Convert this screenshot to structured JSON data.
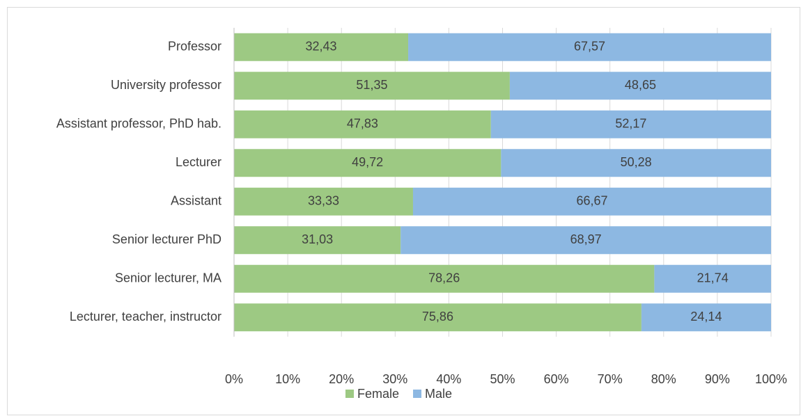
{
  "chart_data": {
    "type": "stacked_bar_horizontal",
    "categories": [
      "Professor",
      "University professor",
      "Assistant professor, PhD hab.",
      "Lecturer",
      "Assistant",
      "Senior lecturer PhD",
      "Senior lecturer, MA",
      "Lecturer, teacher, instructor"
    ],
    "series": [
      {
        "name": "Female",
        "color": "#9dc983",
        "values": [
          32.43,
          51.35,
          47.83,
          49.72,
          33.33,
          31.03,
          78.26,
          75.86
        ],
        "value_labels": [
          "32,43",
          "51,35",
          "47,83",
          "49,72",
          "33,33",
          "31,03",
          "78,26",
          "75,86"
        ]
      },
      {
        "name": "Male",
        "color": "#8db8e2",
        "values": [
          67.57,
          48.65,
          52.17,
          50.28,
          66.67,
          68.97,
          21.74,
          24.14
        ],
        "value_labels": [
          "67,57",
          "48,65",
          "52,17",
          "50,28",
          "66,67",
          "68,97",
          "21,74",
          "24,14"
        ]
      }
    ],
    "xlim": [
      0,
      100
    ],
    "xticks": [
      {
        "value": 0,
        "label": "0%"
      },
      {
        "value": 10,
        "label": "10%"
      },
      {
        "value": 20,
        "label": "20%"
      },
      {
        "value": 30,
        "label": "30%"
      },
      {
        "value": 40,
        "label": "40%"
      },
      {
        "value": 50,
        "label": "50%"
      },
      {
        "value": 60,
        "label": "60%"
      },
      {
        "value": 70,
        "label": "70%"
      },
      {
        "value": 80,
        "label": "80%"
      },
      {
        "value": 90,
        "label": "90%"
      },
      {
        "value": 100,
        "label": "100%"
      }
    ],
    "grid": true,
    "legend": "bottom"
  }
}
